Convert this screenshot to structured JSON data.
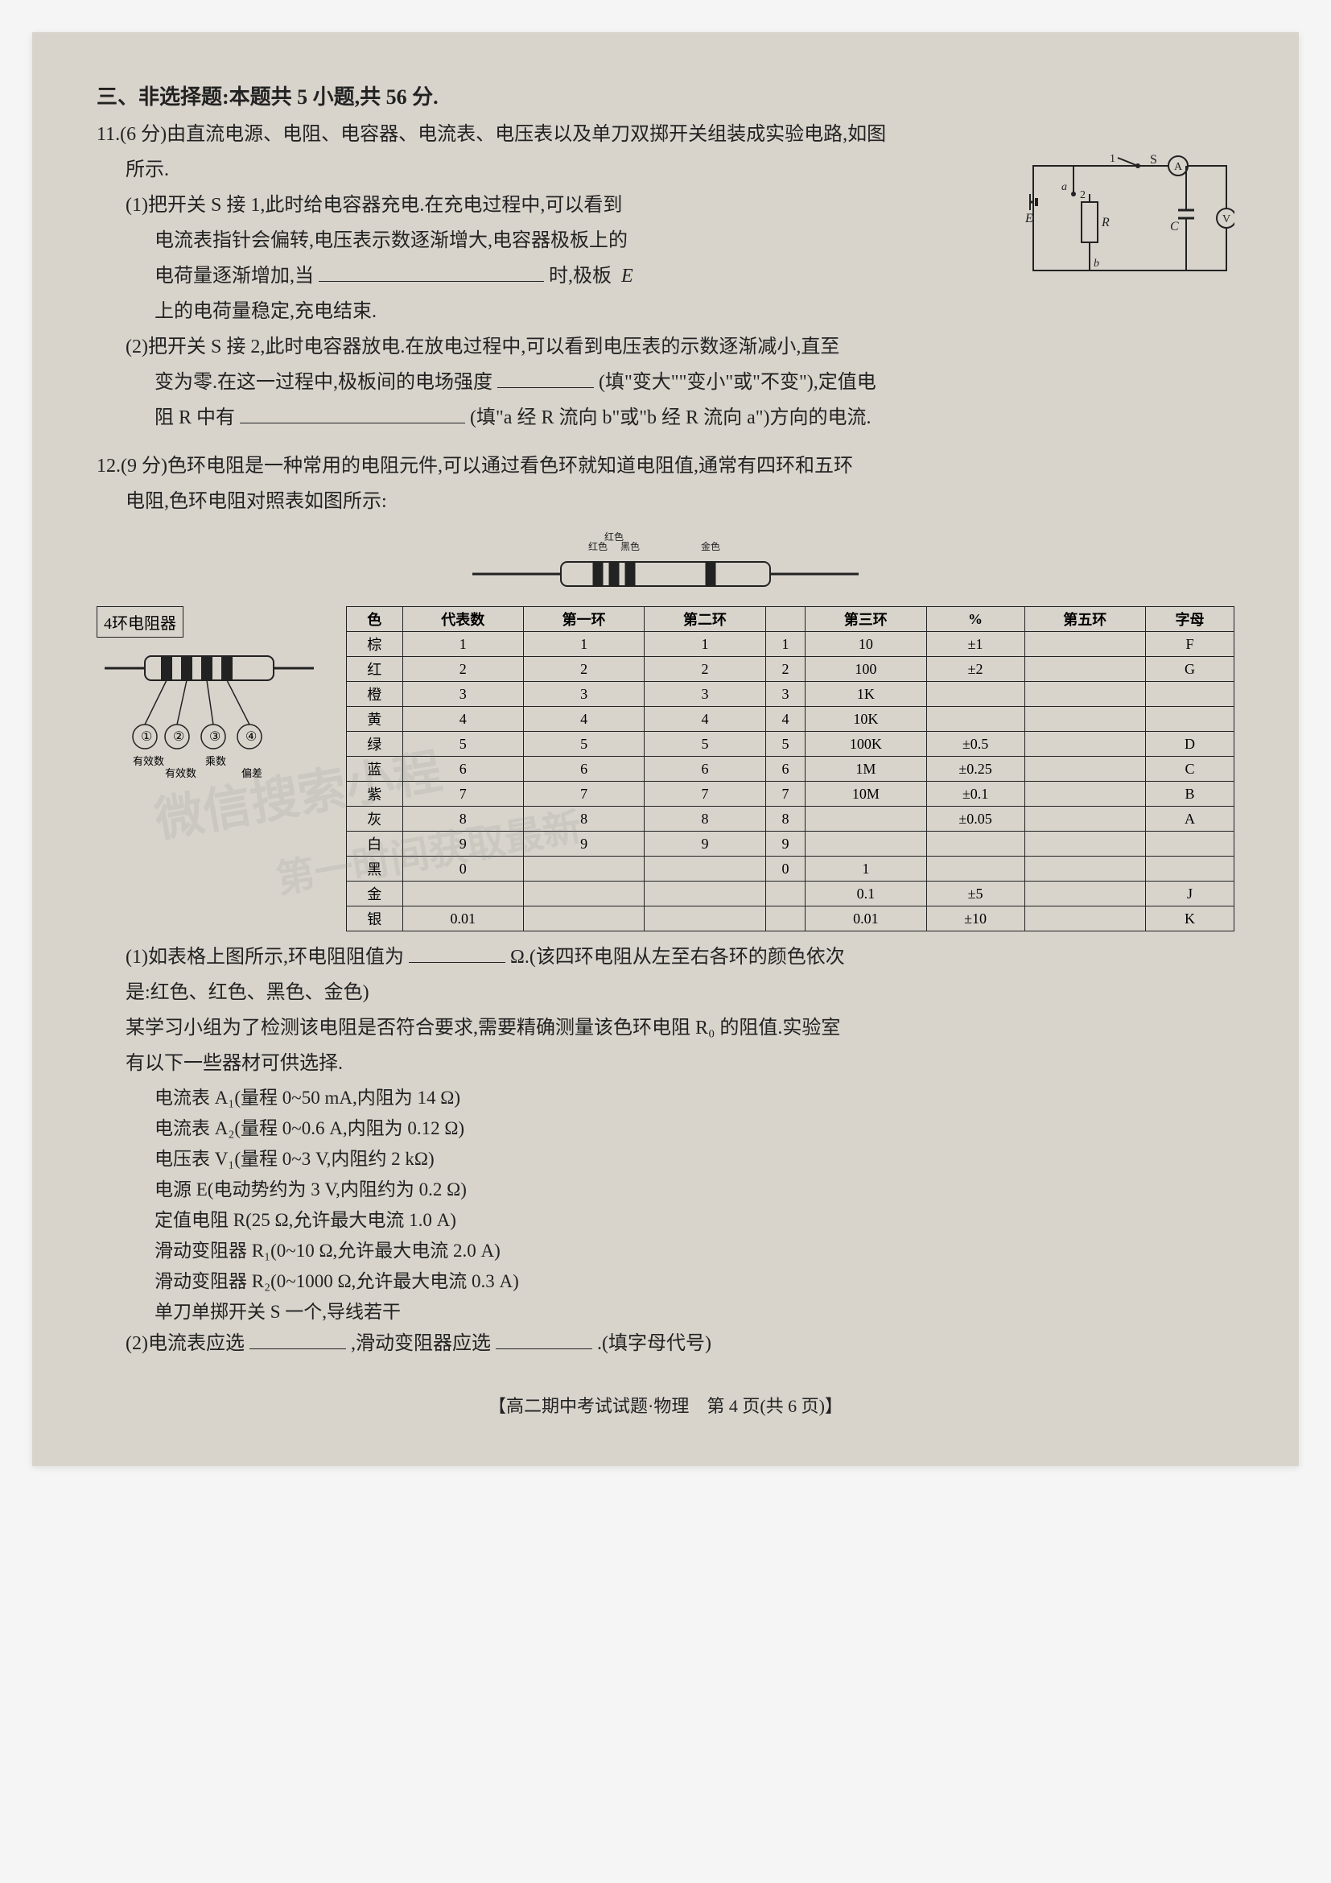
{
  "section_title": "三、非选择题:本题共 5 小题,共 56 分.",
  "q11": {
    "header": "11.(6 分)由直流电源、电阻、电容器、电流表、电压表以及单刀双掷开关组装成实验电路,如图",
    "line_shown": "所示.",
    "part1_l1": "(1)把开关 S 接 1,此时给电容器充电.在充电过程中,可以看到",
    "part1_l2": "电流表指针会偏转,电压表示数逐渐增大,电容器极板上的",
    "part1_l3_pre": "电荷量逐渐增加,当",
    "part1_l3_post": "时,极板",
    "part1_l4": "上的电荷量稳定,充电结束.",
    "part2_l1": "(2)把开关 S 接 2,此时电容器放电.在放电过程中,可以看到电压表的示数逐渐减小,直至",
    "part2_l2_pre": "变为零.在这一过程中,极板间的电场强度",
    "part2_l2_post": "(填\"变大\"\"变小\"或\"不变\"),定值电",
    "part2_l3_pre": "阻 R 中有",
    "part2_l3_post": "(填\"a 经 R 流向 b\"或\"b 经 R 流向 a\")方向的电流.",
    "circuit": {
      "labels": {
        "S": "S",
        "A": "A",
        "V": "V",
        "E": "E",
        "R": "R",
        "C": "C",
        "a": "a",
        "b": "b",
        "one": "1",
        "two": "2"
      }
    }
  },
  "q12": {
    "header": "12.(9 分)色环电阻是一种常用的电阻元件,可以通过看色环就知道电阻值,通常有四环和五环",
    "line2": "电阻,色环电阻对照表如图所示:",
    "band_labels": [
      "红色",
      "红色",
      "黑色",
      "",
      "金色"
    ],
    "resistor_box_label": "4环电阻器",
    "circles": [
      "①",
      "②",
      "③",
      "④"
    ],
    "circle_labels": [
      "有效数",
      "有效数",
      "乘数",
      "偏差"
    ],
    "table": {
      "headers": [
        "色",
        "代表数",
        "第一环",
        "第二环",
        "",
        "第三环",
        "%",
        "第五环",
        "字母"
      ],
      "rows": [
        [
          "棕",
          "1",
          "1",
          "1",
          "1",
          "10",
          "±1",
          "",
          "F"
        ],
        [
          "红",
          "2",
          "2",
          "2",
          "2",
          "100",
          "±2",
          "",
          "G"
        ],
        [
          "橙",
          "3",
          "3",
          "3",
          "3",
          "1K",
          "",
          "",
          ""
        ],
        [
          "黄",
          "4",
          "4",
          "4",
          "4",
          "10K",
          "",
          "",
          ""
        ],
        [
          "绿",
          "5",
          "5",
          "5",
          "5",
          "100K",
          "±0.5",
          "",
          "D"
        ],
        [
          "蓝",
          "6",
          "6",
          "6",
          "6",
          "1M",
          "±0.25",
          "",
          "C"
        ],
        [
          "紫",
          "7",
          "7",
          "7",
          "7",
          "10M",
          "±0.1",
          "",
          "B"
        ],
        [
          "灰",
          "8",
          "8",
          "8",
          "8",
          "",
          "±0.05",
          "",
          "A"
        ],
        [
          "白",
          "9",
          "9",
          "9",
          "9",
          "",
          "",
          "",
          ""
        ],
        [
          "黑",
          "0",
          "",
          "",
          "0",
          "1",
          "",
          "",
          ""
        ],
        [
          "金",
          "",
          "",
          "",
          "",
          "0.1",
          "±5",
          "",
          "J"
        ],
        [
          "银",
          "0.01",
          "",
          "",
          "",
          "0.01",
          "±10",
          "",
          "K"
        ]
      ]
    },
    "part1_pre": "(1)如表格上图所示,环电阻阻值为",
    "part1_post": "Ω.(该四环电阻从左至右各环的颜色依次",
    "part1_l2": "是:红色、红色、黑色、金色)",
    "intro_l1": "某学习小组为了检测该电阻是否符合要求,需要精确测量该色环电阻 R₀ 的阻值.实验室",
    "intro_l2": "有以下一些器材可供选择.",
    "items": [
      "电流表 A₁(量程 0~50 mA,内阻为 14 Ω)",
      "电流表 A₂(量程 0~0.6 A,内阻为 0.12 Ω)",
      "电压表 V₁(量程 0~3 V,内阻约 2 kΩ)",
      "电源 E(电动势约为 3 V,内阻约为 0.2 Ω)",
      "定值电阻 R(25 Ω,允许最大电流 1.0 A)",
      "滑动变阻器 R₁(0~10 Ω,允许最大电流 2.0 A)",
      "滑动变阻器 R₂(0~1000 Ω,允许最大电流 0.3 A)",
      "单刀单掷开关 S 一个,导线若干"
    ],
    "part2_pre": "(2)电流表应选",
    "part2_mid": ",滑动变阻器应选",
    "part2_post": ".(填字母代号)"
  },
  "footer": "【高二期中考试试题·物理　第 4 页(共 6 页)】"
}
